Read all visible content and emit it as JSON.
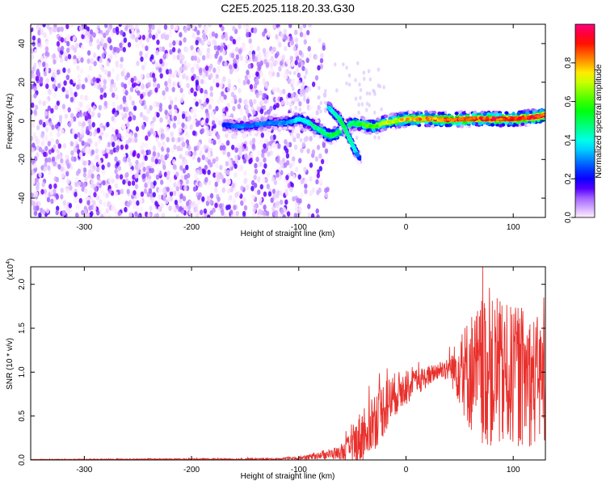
{
  "title": "C2E5.2025.118.20.33.G30",
  "chart_data": [
    {
      "type": "heatmap",
      "xlabel": "Height of straight line (km)",
      "ylabel": "Frequency (Hz)",
      "xlim": [
        -350,
        130
      ],
      "ylim": [
        -50,
        50
      ],
      "xticks": [
        -300,
        -200,
        -100,
        0,
        100
      ],
      "yticks": [
        -40,
        -20,
        0,
        20,
        40
      ],
      "noise_region": {
        "x_range": [
          -350,
          -110
        ],
        "y_range": [
          -50,
          50
        ],
        "level": 0.1
      },
      "signal_track": {
        "x": [
          -170,
          -155,
          -140,
          -125,
          -110,
          -100,
          -90,
          -80,
          -70,
          -60,
          -50,
          -40,
          -30,
          -20,
          -10,
          0,
          20,
          40,
          60,
          80,
          100,
          120,
          130
        ],
        "y": [
          -2,
          -3,
          -2,
          -1,
          -1,
          1,
          -1,
          -5,
          -8,
          -5,
          -1,
          -2,
          -3,
          -1,
          0,
          1,
          1,
          0.5,
          1,
          1,
          1,
          2,
          3
        ],
        "amplitude": [
          0.25,
          0.3,
          0.3,
          0.3,
          0.35,
          0.4,
          0.45,
          0.5,
          0.55,
          0.55,
          0.5,
          0.6,
          0.65,
          0.7,
          0.75,
          0.8,
          0.85,
          0.9,
          0.9,
          0.95,
          0.95,
          0.95,
          0.95
        ]
      },
      "secondary_track": {
        "x": [
          -72,
          -67,
          -62,
          -57,
          -52,
          -47,
          -43
        ],
        "y": [
          7,
          4,
          1,
          -4,
          -10,
          -16,
          -20
        ],
        "amplitude": [
          0.4,
          0.45,
          0.5,
          0.5,
          0.45,
          0.4,
          0.2
        ]
      },
      "colorbar": {
        "label": "Normalized spectral amplitude",
        "range": [
          0,
          1
        ],
        "ticks": [
          0.0,
          0.2,
          0.4,
          0.6,
          0.8
        ]
      }
    },
    {
      "type": "line",
      "xlabel": "Height of straight line (km)",
      "ylabel": "SNR (10 * v/v)",
      "y_multiplier": "(x10",
      "y_multiplier_exp": "4",
      "y_multiplier_close": ")",
      "xlim": [
        -350,
        130
      ],
      "ylim": [
        0,
        2.2
      ],
      "xticks": [
        -300,
        -200,
        -100,
        0,
        100
      ],
      "yticks": [
        0.0,
        0.5,
        1.0,
        1.5,
        2.0
      ],
      "series_color": "#e8302c",
      "envelope": {
        "x": [
          -350,
          -120,
          -100,
          -80,
          -60,
          -50,
          -40,
          -30,
          -20,
          -10,
          0,
          10,
          20,
          30,
          40,
          50,
          60,
          70,
          80,
          90,
          100,
          110,
          120,
          130
        ],
        "baseline": [
          0.005,
          0.01,
          0.02,
          0.05,
          0.08,
          0.15,
          0.3,
          0.45,
          0.6,
          0.75,
          0.82,
          0.88,
          0.95,
          1.02,
          1.05,
          1.02,
          1.0,
          0.98,
          0.98,
          0.95,
          0.95,
          0.95,
          0.9,
          0.9
        ],
        "amplitude": [
          0.003,
          0.01,
          0.02,
          0.04,
          0.08,
          0.2,
          0.35,
          0.35,
          0.32,
          0.25,
          0.2,
          0.15,
          0.12,
          0.1,
          0.15,
          0.4,
          0.7,
          0.8,
          0.85,
          0.85,
          0.8,
          0.8,
          0.75,
          0.7
        ]
      }
    }
  ]
}
